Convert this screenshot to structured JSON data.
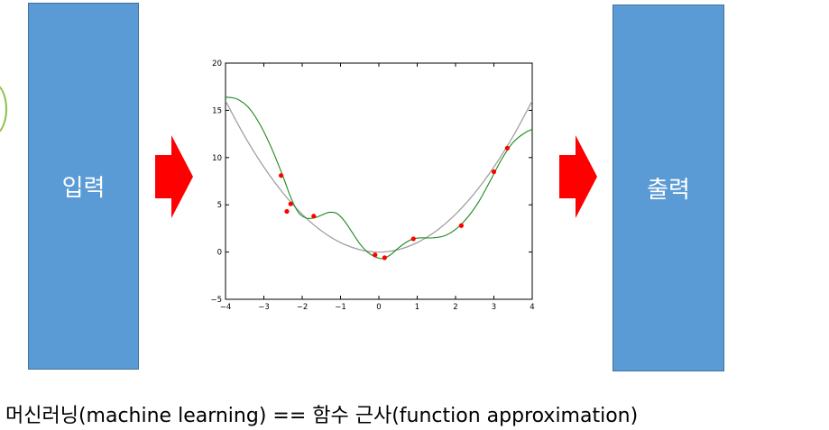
{
  "blocks": {
    "input_label": "입력",
    "output_label": "출력"
  },
  "caption": "머신러닝(machine learning) == 함수 근사(function approximation)",
  "colors": {
    "block_fill": "#5b9bd5",
    "block_border": "#41719c",
    "arrow": "#ff0000",
    "true_curve": "#a0a0a0",
    "fit_curve": "#1a8a1a",
    "points": "#ff0000"
  },
  "icons": {
    "arrow": "right-arrow-icon"
  },
  "chart_data": {
    "type": "line",
    "title": "",
    "xlabel": "",
    "ylabel": "",
    "xlim": [
      -4,
      4
    ],
    "ylim": [
      -5,
      20
    ],
    "xticks": [
      -4,
      -3,
      -2,
      -1,
      0,
      1,
      2,
      3,
      4
    ],
    "yticks": [
      -5,
      0,
      5,
      10,
      15,
      20
    ],
    "grid": false,
    "series": [
      {
        "kind": "line",
        "x": [
          -4,
          -3.5,
          -3,
          -2.5,
          -2,
          -1.5,
          -1,
          -0.5,
          0,
          0.5,
          1,
          1.5,
          2,
          2.5,
          3,
          3.5,
          4
        ],
        "y": [
          16,
          12.25,
          9,
          6.25,
          4,
          2.25,
          1,
          0.25,
          0,
          0.25,
          1,
          2.25,
          4,
          6.25,
          9,
          12.25,
          16
        ]
      },
      {
        "kind": "line",
        "x": [
          -4,
          -3.7,
          -3.4,
          -3.1,
          -2.8,
          -2.5,
          -2.3,
          -2.1,
          -1.9,
          -1.7,
          -1.5,
          -1.3,
          -1.1,
          -0.9,
          -0.7,
          -0.5,
          -0.3,
          -0.1,
          0.1,
          0.3,
          0.5,
          0.7,
          0.9,
          1.1,
          1.4,
          1.7,
          2.0,
          2.3,
          2.6,
          2.9,
          3.2,
          3.5,
          3.8,
          4.0
        ],
        "y": [
          16.4,
          16.2,
          15.3,
          13.5,
          11.0,
          8.0,
          5.8,
          4.2,
          3.6,
          3.6,
          3.9,
          4.2,
          4.1,
          3.3,
          2.1,
          0.9,
          0.0,
          -0.5,
          -0.7,
          -0.3,
          0.4,
          1.0,
          1.4,
          1.5,
          1.5,
          1.7,
          2.4,
          3.6,
          5.3,
          7.5,
          9.8,
          11.6,
          12.6,
          13.0
        ]
      },
      {
        "kind": "scatter",
        "x": [
          -2.55,
          -2.4,
          -2.3,
          -1.7,
          -0.1,
          0.15,
          0.9,
          2.15,
          3.0,
          3.35
        ],
        "y": [
          8.1,
          4.3,
          5.1,
          3.8,
          -0.3,
          -0.6,
          1.4,
          2.8,
          8.5,
          11.0
        ]
      }
    ]
  }
}
